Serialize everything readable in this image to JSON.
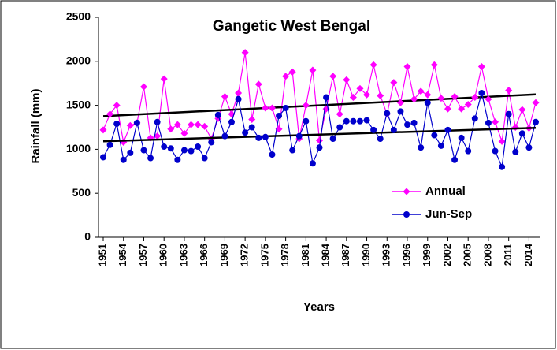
{
  "chart_data": {
    "type": "line",
    "title": "Gangetic West Bengal",
    "xlabel": "Years",
    "ylabel": "Rainfall (mm)",
    "x": [
      1951,
      1952,
      1953,
      1954,
      1955,
      1956,
      1957,
      1958,
      1959,
      1960,
      1961,
      1962,
      1963,
      1964,
      1965,
      1966,
      1967,
      1968,
      1969,
      1970,
      1971,
      1972,
      1973,
      1974,
      1975,
      1976,
      1977,
      1978,
      1979,
      1980,
      1981,
      1982,
      1983,
      1984,
      1985,
      1986,
      1987,
      1988,
      1989,
      1990,
      1991,
      1992,
      1993,
      1994,
      1995,
      1996,
      1997,
      1998,
      1999,
      2000,
      2001,
      2002,
      2003,
      2004,
      2005,
      2006,
      2007,
      2008,
      2009,
      2010,
      2011,
      2012,
      2013,
      2014,
      2015
    ],
    "series": [
      {
        "name": "Annual",
        "color": "#ff00ff",
        "marker": "diamond",
        "values": [
          1220,
          1400,
          1500,
          1080,
          1270,
          1300,
          1710,
          1130,
          1150,
          1800,
          1230,
          1280,
          1180,
          1280,
          1280,
          1260,
          1120,
          1350,
          1600,
          1400,
          1640,
          2100,
          1340,
          1740,
          1470,
          1470,
          1230,
          1830,
          1880,
          1120,
          1500,
          1900,
          1100,
          1460,
          1830,
          1400,
          1790,
          1590,
          1690,
          1620,
          1960,
          1610,
          1400,
          1760,
          1530,
          1940,
          1570,
          1660,
          1620,
          1960,
          1580,
          1460,
          1600,
          1460,
          1510,
          1590,
          1940,
          1570,
          1310,
          1090,
          1670,
          1250,
          1450,
          1240,
          1530
        ]
      },
      {
        "name": "Jun-Sep",
        "color": "#0000cc",
        "marker": "circle",
        "values": [
          910,
          1050,
          1290,
          880,
          960,
          1300,
          990,
          900,
          1310,
          1030,
          1010,
          880,
          990,
          980,
          1030,
          900,
          1080,
          1390,
          1150,
          1310,
          1570,
          1190,
          1250,
          1130,
          1140,
          940,
          1380,
          1470,
          990,
          1150,
          1320,
          840,
          1020,
          1590,
          1120,
          1250,
          1320,
          1320,
          1320,
          1330,
          1220,
          1120,
          1410,
          1220,
          1430,
          1280,
          1300,
          1020,
          1530,
          1160,
          1040,
          1220,
          880,
          1130,
          980,
          1350,
          1640,
          1300,
          980,
          800,
          1400,
          970,
          1180,
          1020,
          1310
        ]
      }
    ],
    "trendline": true,
    "trendline_color": "#000000",
    "xlim": [
      1950.3,
      2015.7
    ],
    "xticks": [
      1951,
      1954,
      1957,
      1960,
      1963,
      1966,
      1969,
      1972,
      1975,
      1978,
      1981,
      1984,
      1987,
      1990,
      1993,
      1996,
      1999,
      2002,
      2005,
      2008,
      2011,
      2014
    ],
    "ylim": [
      0,
      2500
    ],
    "yticks": [
      0,
      500,
      1000,
      1500,
      2000,
      2500
    ],
    "legend": "lower right"
  }
}
